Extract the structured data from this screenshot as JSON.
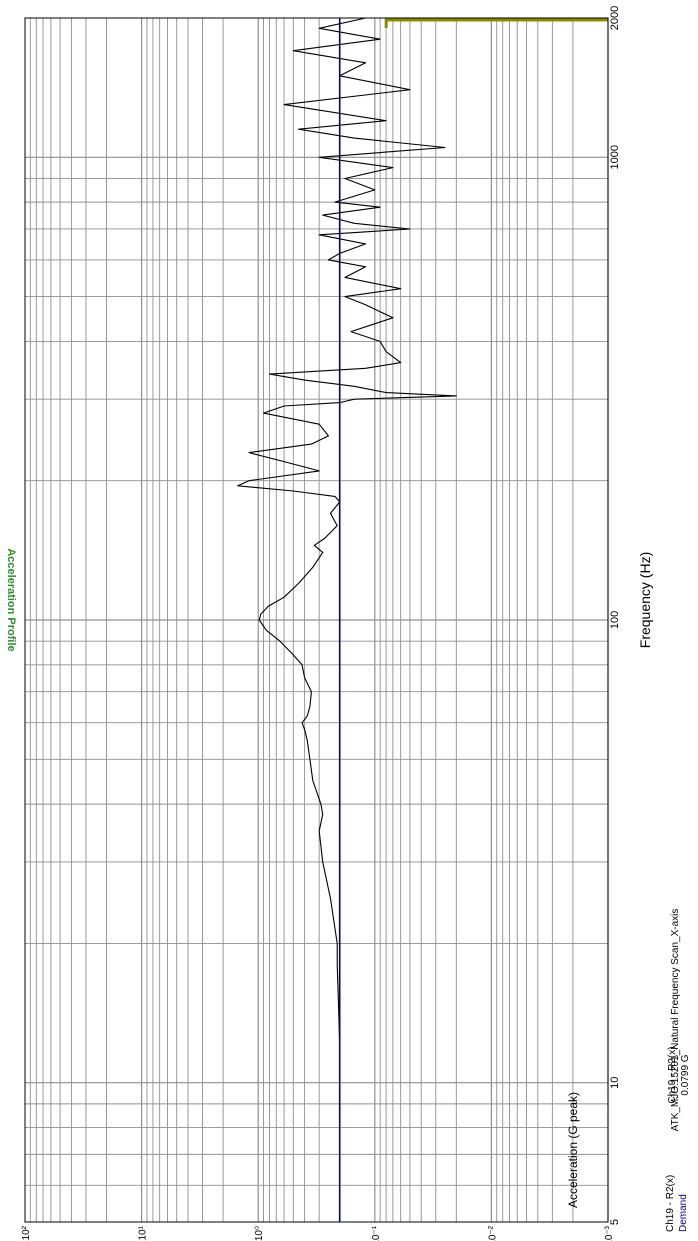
{
  "chart_data": {
    "type": "line",
    "orientation": "rotated-90-clockwise",
    "title": "Acceleration Profile",
    "xlabel": "Frequency (Hz)",
    "ylabel": "Acceleration (G peak)",
    "x_scale": "log",
    "y_scale": "log",
    "xlim": [
      5,
      2000
    ],
    "ylim": [
      0.001,
      100
    ],
    "grid": true,
    "x_ticks": [
      "5",
      "10",
      "100",
      "1000",
      "2000"
    ],
    "y_ticks": [
      "1x10²",
      "1x10¹",
      "1x10⁰",
      "1x10⁻¹",
      "1x10⁻²",
      "1x10⁻³"
    ],
    "series": [
      {
        "name": "Ch19 - R2(x)",
        "color": "#000000",
        "x": [
          5,
          6,
          8,
          10,
          12,
          15,
          18,
          20,
          25,
          30,
          35,
          38,
          40,
          45,
          50,
          55,
          58,
          60,
          62,
          65,
          70,
          75,
          80,
          85,
          90,
          95,
          100,
          103,
          107,
          112,
          120,
          130,
          140,
          145,
          150,
          160,
          170,
          180,
          185,
          190,
          195,
          200,
          210,
          220,
          230,
          240,
          250,
          265,
          280,
          290,
          295,
          300,
          305,
          310,
          320,
          330,
          340,
          350,
          360,
          380,
          400,
          420,
          450,
          480,
          500,
          520,
          550,
          580,
          600,
          620,
          650,
          680,
          700,
          720,
          750,
          780,
          800,
          850,
          900,
          950,
          1000,
          1050,
          1100,
          1150,
          1200,
          1300,
          1400,
          1500,
          1600,
          1700,
          1800,
          1900,
          2000
        ],
        "y": [
          0.2,
          0.2,
          0.2,
          0.2,
          0.2,
          0.205,
          0.21,
          0.21,
          0.24,
          0.28,
          0.3,
          0.28,
          0.29,
          0.34,
          0.36,
          0.38,
          0.4,
          0.42,
          0.38,
          0.36,
          0.35,
          0.4,
          0.42,
          0.52,
          0.65,
          0.85,
          0.98,
          0.95,
          0.82,
          0.6,
          0.45,
          0.34,
          0.28,
          0.33,
          0.27,
          0.21,
          0.24,
          0.2,
          0.22,
          0.5,
          1.5,
          1.2,
          0.3,
          0.6,
          1.2,
          0.35,
          0.25,
          0.3,
          0.9,
          0.6,
          0.2,
          0.15,
          0.02,
          0.08,
          0.15,
          0.4,
          0.8,
          0.12,
          0.06,
          0.08,
          0.09,
          0.16,
          0.07,
          0.12,
          0.18,
          0.06,
          0.18,
          0.12,
          0.25,
          0.2,
          0.12,
          0.3,
          0.05,
          0.15,
          0.28,
          0.09,
          0.22,
          0.1,
          0.18,
          0.07,
          0.3,
          0.025,
          0.15,
          0.45,
          0.08,
          0.6,
          0.05,
          0.2,
          0.12,
          0.5,
          0.09,
          0.3,
          0.12
        ]
      },
      {
        "name": "Demand",
        "color": "#000080",
        "x": [
          5,
          2000
        ],
        "y": [
          0.2,
          0.2
        ]
      }
    ],
    "cursor": {
      "label": "Ch19 - R2(x)",
      "value": "0.0799 G"
    },
    "legend": {
      "items": [
        "Ch19 - R2(x)",
        "Demand"
      ],
      "placement": "bottom-left"
    },
    "footer": "ATK_MJO:15201_Natural Frequency Scan_X-axis",
    "colors": {
      "title": "#2e8b2e",
      "measured": "#000000",
      "demand": "#000080",
      "marker": "#8b8b00",
      "grid": "#8f8f8f"
    }
  }
}
